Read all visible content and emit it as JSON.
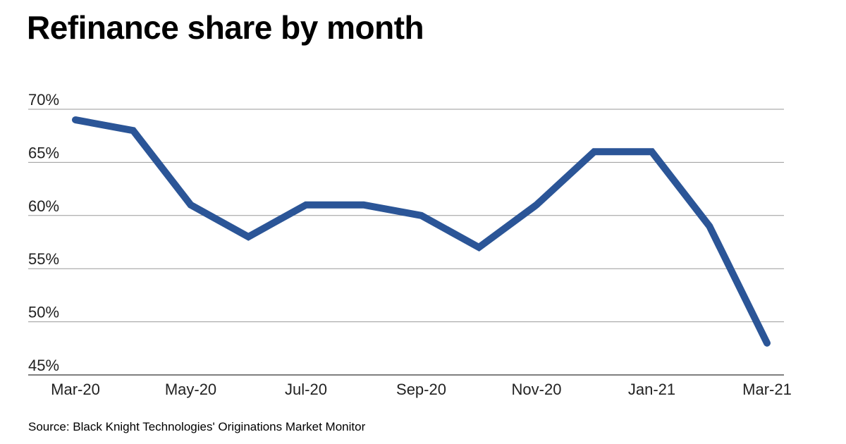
{
  "chart_data": {
    "type": "line",
    "title": "Refinance share by month",
    "xlabel": "",
    "ylabel": "",
    "x": [
      "Mar-20",
      "Apr-20",
      "May-20",
      "Jun-20",
      "Jul-20",
      "Aug-20",
      "Sep-20",
      "Oct-20",
      "Nov-20",
      "Dec-20",
      "Jan-21",
      "Feb-21",
      "Mar-21"
    ],
    "x_tick_labels": [
      "Mar-20",
      "May-20",
      "Jul-20",
      "Sep-20",
      "Nov-20",
      "Jan-21",
      "Mar-21"
    ],
    "series": [
      {
        "values": [
          69,
          68,
          61,
          58,
          61,
          61,
          60,
          57,
          61,
          66,
          66,
          59,
          48
        ],
        "color": "#2b5597"
      }
    ],
    "ylim": [
      45,
      70
    ],
    "y_ticks": [
      70,
      65,
      60,
      55,
      50,
      45
    ],
    "y_tick_labels": [
      "70%",
      "65%",
      "60%",
      "55%",
      "50%",
      "45%"
    ],
    "grid": true,
    "legend": "none"
  },
  "source": "Source: Black Knight Technologies' Originations Market Monitor"
}
